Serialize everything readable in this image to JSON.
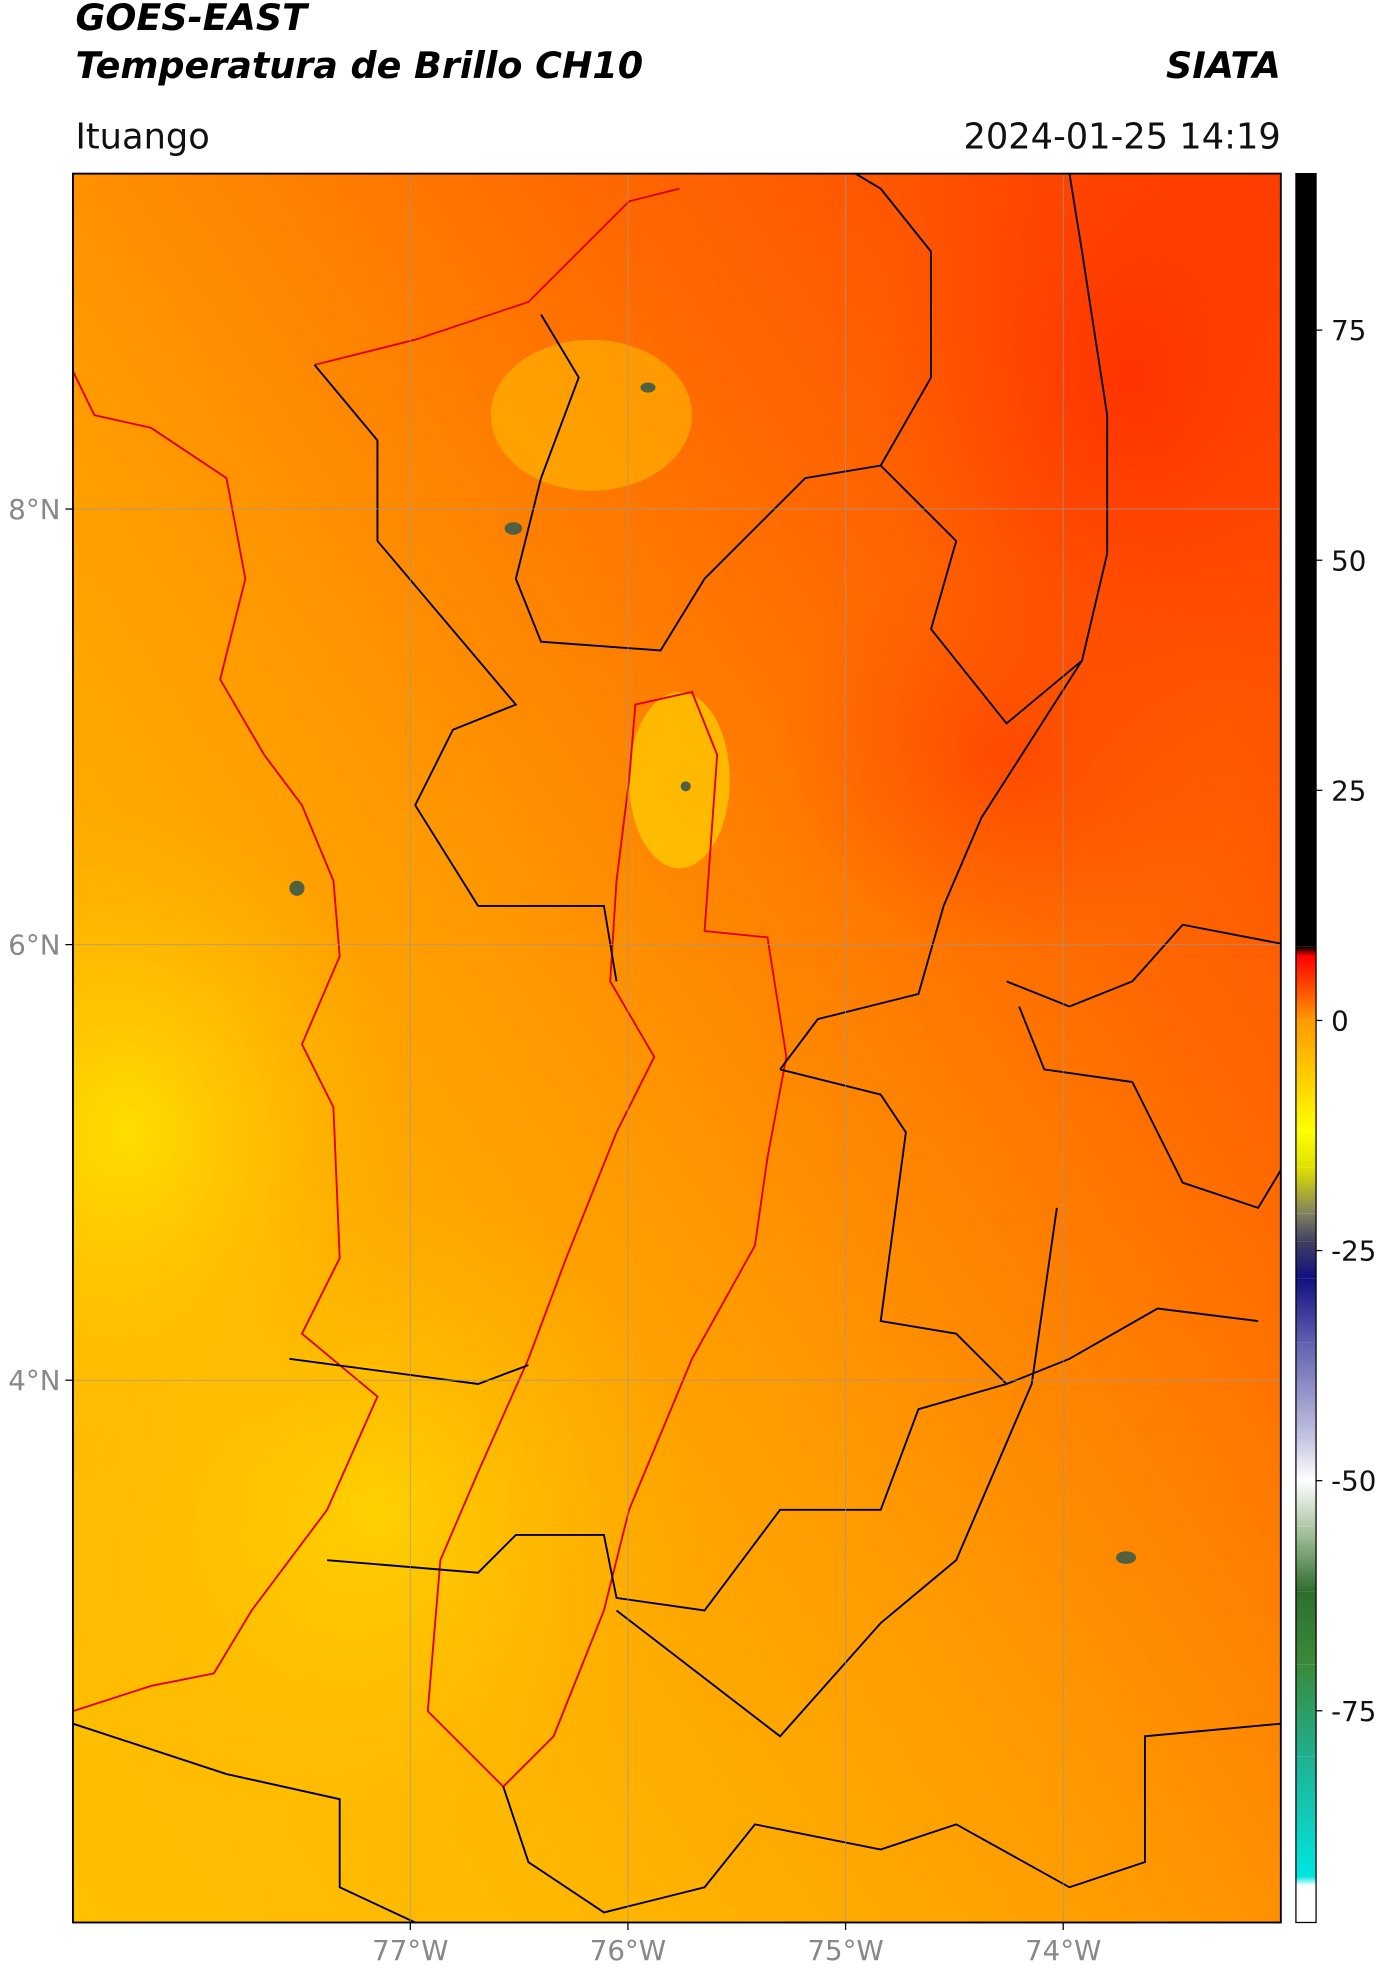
{
  "header": {
    "title": "GOES-EAST",
    "subtitle": "Temperatura de Brillo CH10",
    "brand": "SIATA",
    "location": "Ituango",
    "timestamp": "2024-01-25 14:19"
  },
  "chart_data": {
    "type": "map",
    "xlim": [
      -78.55,
      -73.0
    ],
    "ylim": [
      1.51,
      9.54
    ],
    "xticks": [
      {
        "value": -77,
        "label": "77°W"
      },
      {
        "value": -76,
        "label": "76°W"
      },
      {
        "value": -75,
        "label": "75°W"
      },
      {
        "value": -74,
        "label": "74°W"
      }
    ],
    "yticks": [
      {
        "value": 8,
        "label": "8°N"
      },
      {
        "value": 6,
        "label": "6°N"
      },
      {
        "value": 4,
        "label": "4°N"
      }
    ],
    "grid": true,
    "colorbar": {
      "lim": [
        -98,
        92
      ],
      "ticks": [
        -75,
        -50,
        -25,
        0,
        25,
        50,
        75
      ],
      "stops": [
        {
          "value": -98,
          "color": "#ffffff"
        },
        {
          "value": -94,
          "color": "#ffffff"
        },
        {
          "value": -93,
          "color": "#00e5e0"
        },
        {
          "value": -80,
          "color": "#20b090"
        },
        {
          "value": -70,
          "color": "#3a8a3a"
        },
        {
          "value": -62,
          "color": "#2e6e2e"
        },
        {
          "value": -55,
          "color": "#b0c8a8"
        },
        {
          "value": -50,
          "color": "#ffffff"
        },
        {
          "value": -45,
          "color": "#c0c0e0"
        },
        {
          "value": -35,
          "color": "#6060b0"
        },
        {
          "value": -28,
          "color": "#101080"
        },
        {
          "value": -24,
          "color": "#404060"
        },
        {
          "value": -21,
          "color": "#808060"
        },
        {
          "value": -16,
          "color": "#e0e000"
        },
        {
          "value": -12,
          "color": "#ffff00"
        },
        {
          "value": 0,
          "color": "#ff9a00"
        },
        {
          "value": 7,
          "color": "#ff0000"
        },
        {
          "value": 8,
          "color": "#000000"
        },
        {
          "value": 92,
          "color": "#000000"
        }
      ]
    }
  }
}
